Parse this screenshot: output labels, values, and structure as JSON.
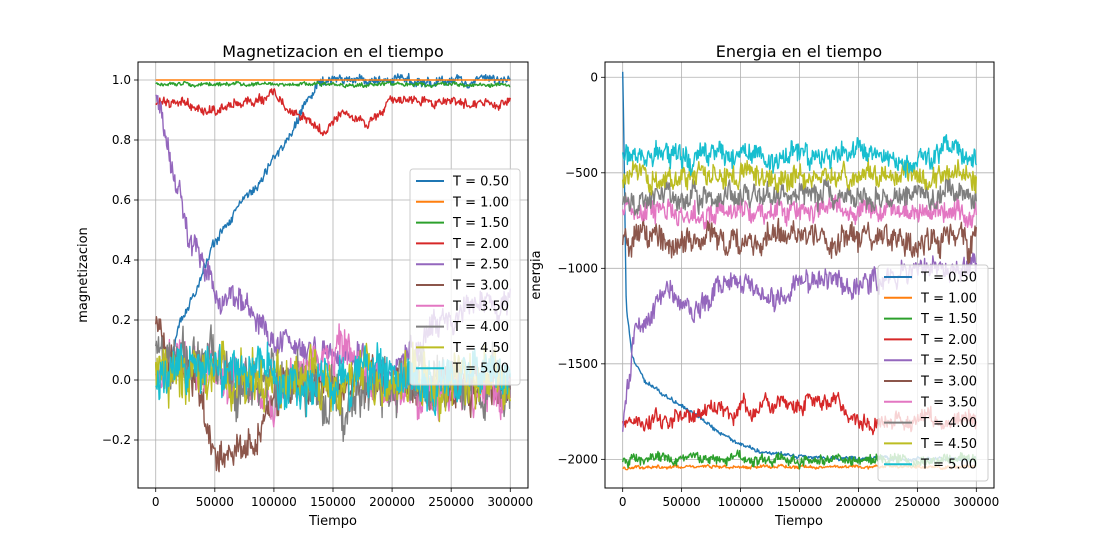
{
  "chart_data": [
    {
      "type": "line",
      "title": "Magnetizacion en el tiempo",
      "xlabel": "Tiempo",
      "ylabel": "magnetizacion",
      "xlim": [
        -15000,
        315000
      ],
      "ylim": [
        -0.36,
        1.06
      ],
      "xticks": [
        0,
        50000,
        100000,
        150000,
        200000,
        250000,
        300000
      ],
      "xtick_labels": [
        "0",
        "50000",
        "100000",
        "150000",
        "200000",
        "250000",
        "300000"
      ],
      "yticks": [
        -0.2,
        0.0,
        0.2,
        0.4,
        0.6,
        0.8,
        1.0
      ],
      "ytick_labels": [
        "−0.2",
        "0.0",
        "0.2",
        "0.4",
        "0.6",
        "0.8",
        "1.0"
      ],
      "grid": true,
      "legend_position": "center-right",
      "series": [
        {
          "name": "T = 0.50",
          "color": "#1f77b4",
          "x": [
            0,
            10000,
            20000,
            30000,
            40000,
            50000,
            60000,
            70000,
            80000,
            90000,
            100000,
            110000,
            120000,
            130000,
            140000,
            300000
          ],
          "values": [
            0.04,
            0.02,
            0.18,
            0.27,
            0.36,
            0.46,
            0.52,
            0.58,
            0.62,
            0.66,
            0.74,
            0.8,
            0.87,
            0.93,
            1.0,
            1.0
          ],
          "noise": 0.015
        },
        {
          "name": "T = 1.00",
          "color": "#ff7f0e",
          "x": [
            0,
            300000
          ],
          "values": [
            1.0,
            1.0
          ],
          "noise": 0.0
        },
        {
          "name": "T = 1.50",
          "color": "#2ca02c",
          "x": [
            0,
            300000
          ],
          "values": [
            0.985,
            0.985
          ],
          "noise": 0.006
        },
        {
          "name": "T = 2.00",
          "color": "#d62728",
          "x": [
            0,
            50000,
            100000,
            140000,
            160000,
            180000,
            200000,
            250000,
            300000
          ],
          "values": [
            0.93,
            0.9,
            0.95,
            0.82,
            0.9,
            0.85,
            0.93,
            0.93,
            0.92
          ],
          "noise": 0.015
        },
        {
          "name": "T = 2.50",
          "color": "#9467bd",
          "x": [
            0,
            10000,
            20000,
            30000,
            40000,
            50000,
            70000,
            90000,
            120000,
            150000,
            200000,
            250000,
            300000
          ],
          "values": [
            0.95,
            0.8,
            0.65,
            0.47,
            0.38,
            0.3,
            0.25,
            0.17,
            0.08,
            0.1,
            0.05,
            0.2,
            0.25
          ],
          "noise": 0.04
        },
        {
          "name": "T = 3.00",
          "color": "#8c564b",
          "x": [
            0,
            40000,
            50000,
            80000,
            100000,
            150000,
            200000,
            250000,
            300000
          ],
          "values": [
            0.15,
            -0.05,
            -0.25,
            -0.25,
            -0.05,
            0.0,
            0.0,
            -0.05,
            0.0
          ],
          "noise": 0.06
        },
        {
          "name": "T = 3.50",
          "color": "#e377c2",
          "x": [
            0,
            100000,
            160000,
            200000,
            250000,
            300000
          ],
          "values": [
            0.05,
            -0.05,
            0.1,
            -0.05,
            -0.05,
            -0.03
          ],
          "noise": 0.07
        },
        {
          "name": "T = 4.00",
          "color": "#7f7f7f",
          "x": [
            0,
            100000,
            170000,
            250000,
            300000
          ],
          "values": [
            0.1,
            0.0,
            -0.05,
            0.0,
            -0.05
          ],
          "noise": 0.08
        },
        {
          "name": "T = 4.50",
          "color": "#bcbd22",
          "x": [
            0,
            300000
          ],
          "values": [
            0.0,
            0.0
          ],
          "noise": 0.08
        },
        {
          "name": "T = 5.00",
          "color": "#17becf",
          "x": [
            0,
            300000
          ],
          "values": [
            0.0,
            0.0
          ],
          "noise": 0.07
        }
      ]
    },
    {
      "type": "line",
      "title": "Energia en el tiempo",
      "xlabel": "Tiempo",
      "ylabel": "energia",
      "xlim": [
        -15000,
        315000
      ],
      "ylim": [
        -2150,
        80
      ],
      "xticks": [
        0,
        50000,
        100000,
        150000,
        200000,
        250000,
        300000
      ],
      "xtick_labels": [
        "0",
        "50000",
        "100000",
        "150000",
        "200000",
        "250000",
        "300000"
      ],
      "yticks": [
        -2000,
        -1500,
        -1000,
        -500,
        0
      ],
      "ytick_labels": [
        "−2000",
        "−1500",
        "−1000",
        "−500",
        "0"
      ],
      "grid": true,
      "legend_position": "lower-right",
      "series": [
        {
          "name": "T = 0.50",
          "color": "#1f77b4",
          "x": [
            0,
            1000,
            3000,
            8000,
            20000,
            40000,
            60000,
            80000,
            100000,
            120000,
            150000,
            200000,
            300000
          ],
          "values": [
            30,
            -300,
            -1200,
            -1450,
            -1600,
            -1680,
            -1750,
            -1850,
            -1920,
            -1960,
            -1980,
            -2000,
            -2000
          ],
          "noise": 10
        },
        {
          "name": "T = 1.00",
          "color": "#ff7f0e",
          "x": [
            0,
            300000
          ],
          "values": [
            -2040,
            -2040
          ],
          "noise": 8
        },
        {
          "name": "T = 1.50",
          "color": "#2ca02c",
          "x": [
            0,
            300000
          ],
          "values": [
            -2000,
            -2000
          ],
          "noise": 25
        },
        {
          "name": "T = 2.00",
          "color": "#d62728",
          "x": [
            0,
            150000,
            180000,
            200000,
            300000
          ],
          "values": [
            -1800,
            -1700,
            -1680,
            -1800,
            -1800
          ],
          "noise": 40
        },
        {
          "name": "T = 2.50",
          "color": "#9467bd",
          "x": [
            0,
            10000,
            30000,
            60000,
            80000,
            100000,
            130000,
            150000,
            200000,
            250000,
            300000
          ],
          "values": [
            -1800,
            -1400,
            -1100,
            -1200,
            -1100,
            -1050,
            -1200,
            -1050,
            -1100,
            -1000,
            -1000
          ],
          "noise": 55
        },
        {
          "name": "T = 3.00",
          "color": "#8c564b",
          "x": [
            0,
            300000
          ],
          "values": [
            -850,
            -850
          ],
          "noise": 65
        },
        {
          "name": "T = 3.50",
          "color": "#e377c2",
          "x": [
            0,
            300000
          ],
          "values": [
            -700,
            -700
          ],
          "noise": 55
        },
        {
          "name": "T = 4.00",
          "color": "#7f7f7f",
          "x": [
            0,
            300000
          ],
          "values": [
            -620,
            -620
          ],
          "noise": 55
        },
        {
          "name": "T = 4.50",
          "color": "#bcbd22",
          "x": [
            0,
            300000
          ],
          "values": [
            -520,
            -520
          ],
          "noise": 55
        },
        {
          "name": "T = 5.00",
          "color": "#17becf",
          "x": [
            0,
            300000
          ],
          "values": [
            -410,
            -410
          ],
          "noise": 55
        }
      ]
    }
  ]
}
